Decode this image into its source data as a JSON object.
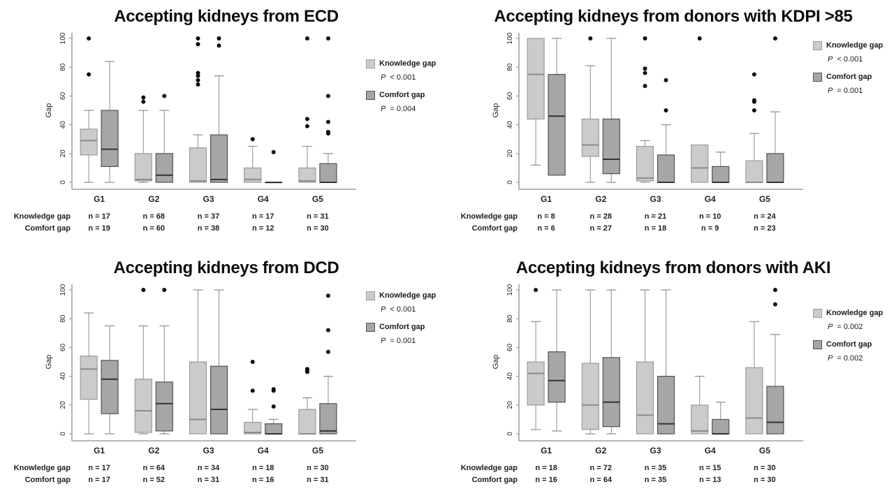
{
  "colors": {
    "knowledge_fill": "#cbcbcb",
    "knowledge_border": "#9b9b9b",
    "knowledge_median": "#8a8a8a",
    "comfort_fill": "#a6a6a6",
    "comfort_border": "#525252",
    "comfort_median": "#333333",
    "outlier": "#0d0d0d",
    "axis": "#8c8c8c",
    "text": "#1f1f1f"
  },
  "chart_data": [
    {
      "type": "boxplot",
      "title": "Accepting kidneys from ECD",
      "ylabel": "Gap",
      "ylim": [
        0,
        100
      ],
      "yticks": [
        0,
        20,
        40,
        60,
        80,
        100
      ],
      "categories": [
        "G1",
        "G2",
        "G3",
        "G4",
        "G5"
      ],
      "legend_position": "right",
      "legend_top": 42,
      "legend": [
        {
          "label": "Knowledge gap",
          "p": "P < 0.001"
        },
        {
          "label": "Comfort gap",
          "p": "P = 0.004"
        }
      ],
      "series": [
        {
          "name": "Knowledge gap",
          "boxes": [
            {
              "low": 0,
              "q1": 19,
              "median": 29,
              "q3": 37,
              "high": 50,
              "outliers": [
                75,
                100
              ]
            },
            {
              "low": 0,
              "q1": 1,
              "median": 2,
              "q3": 20,
              "high": 50,
              "outliers": [
                56,
                59
              ]
            },
            {
              "low": 0,
              "q1": 0,
              "median": 1,
              "q3": 24,
              "high": 33,
              "outliers": [
                68,
                71,
                74,
                76,
                96,
                100
              ]
            },
            {
              "low": 0,
              "q1": 0,
              "median": 2,
              "q3": 10,
              "high": 25,
              "outliers": [
                30
              ]
            },
            {
              "low": 0,
              "q1": 0,
              "median": 1,
              "q3": 10,
              "high": 25,
              "outliers": [
                39,
                44,
                100
              ]
            }
          ]
        },
        {
          "name": "Comfort gap",
          "boxes": [
            {
              "low": 0,
              "q1": 11,
              "median": 23,
              "q3": 50,
              "high": 84,
              "outliers": []
            },
            {
              "low": 0,
              "q1": 0,
              "median": 5,
              "q3": 20,
              "high": 50,
              "outliers": [
                60
              ]
            },
            {
              "low": 0,
              "q1": 0,
              "median": 2,
              "q3": 33,
              "high": 74,
              "outliers": [
                95,
                100
              ]
            },
            {
              "low": 0,
              "q1": 0,
              "median": 0,
              "q3": 0,
              "high": 0,
              "outliers": [
                21
              ]
            },
            {
              "low": 0,
              "q1": 0,
              "median": 0,
              "q3": 13,
              "high": 20,
              "outliers": [
                34,
                35,
                42,
                60,
                100
              ]
            }
          ]
        }
      ],
      "table": {
        "rows": [
          {
            "label": "Knowledge gap",
            "values": [
              "n = 17",
              "n = 68",
              "n = 37",
              "n = 17",
              "n = 31"
            ]
          },
          {
            "label": "Comfort gap",
            "values": [
              "n = 19",
              "n = 60",
              "n = 38",
              "n = 12",
              "n = 30"
            ]
          }
        ]
      }
    },
    {
      "type": "boxplot",
      "title": "Accepting kidneys from donors with KDPI >85",
      "ylabel": "Gap",
      "ylim": [
        0,
        100
      ],
      "yticks": [
        0,
        20,
        40,
        60,
        80,
        100
      ],
      "categories": [
        "G1",
        "G2",
        "G3",
        "G4",
        "G5"
      ],
      "legend_position": "right",
      "legend_top": 16,
      "legend": [
        {
          "label": "Knowledge gap",
          "p": "P < 0.001"
        },
        {
          "label": "Comfort gap",
          "p": "P = 0.001"
        }
      ],
      "series": [
        {
          "name": "Knowledge gap",
          "boxes": [
            {
              "low": 12,
              "q1": 44,
              "median": 75,
              "q3": 100,
              "high": 100,
              "outliers": []
            },
            {
              "low": 0,
              "q1": 18,
              "median": 26,
              "q3": 44,
              "high": 81,
              "outliers": [
                100
              ]
            },
            {
              "low": 0,
              "q1": 1,
              "median": 3,
              "q3": 25,
              "high": 29,
              "outliers": [
                67,
                76,
                79,
                100
              ]
            },
            {
              "low": 0,
              "q1": 0,
              "median": 10,
              "q3": 26,
              "high": 26,
              "outliers": [
                100
              ]
            },
            {
              "low": 0,
              "q1": 0,
              "median": 0,
              "q3": 15,
              "high": 34,
              "outliers": [
                50,
                56,
                57,
                75
              ]
            }
          ]
        },
        {
          "name": "Comfort gap",
          "boxes": [
            {
              "low": 5,
              "q1": 5,
              "median": 46,
              "q3": 75,
              "high": 100,
              "outliers": []
            },
            {
              "low": 0,
              "q1": 6,
              "median": 16,
              "q3": 44,
              "high": 100,
              "outliers": []
            },
            {
              "low": 0,
              "q1": 0,
              "median": 0,
              "q3": 19,
              "high": 40,
              "outliers": [
                50,
                71
              ]
            },
            {
              "low": 0,
              "q1": 0,
              "median": 0,
              "q3": 11,
              "high": 21,
              "outliers": []
            },
            {
              "low": 0,
              "q1": 0,
              "median": 0,
              "q3": 20,
              "high": 49,
              "outliers": [
                100
              ]
            }
          ]
        }
      ],
      "table": {
        "rows": [
          {
            "label": "Knowledge gap",
            "values": [
              "n = 8",
              "n = 28",
              "n = 21",
              "n = 10",
              "n = 24"
            ]
          },
          {
            "label": "Comfort gap",
            "values": [
              "n = 6",
              "n = 27",
              "n = 18",
              "n = 9",
              "n = 23"
            ]
          }
        ]
      }
    },
    {
      "type": "boxplot",
      "title": "Accepting kidneys from DCD",
      "ylabel": "Gap",
      "ylim": [
        0,
        100
      ],
      "yticks": [
        0,
        20,
        40,
        60,
        80,
        100
      ],
      "categories": [
        "G1",
        "G2",
        "G3",
        "G4",
        "G5"
      ],
      "legend_position": "right",
      "legend_top": 14,
      "legend": [
        {
          "label": "Knowledge gap",
          "p": "P < 0.001"
        },
        {
          "label": "Comfort gap",
          "p": "P = 0.001"
        }
      ],
      "series": [
        {
          "name": "Knowledge gap",
          "boxes": [
            {
              "low": 0,
              "q1": 24,
              "median": 45,
              "q3": 54,
              "high": 84,
              "outliers": []
            },
            {
              "low": 0,
              "q1": 1,
              "median": 16,
              "q3": 38,
              "high": 75,
              "outliers": [
                100
              ]
            },
            {
              "low": 0,
              "q1": 0,
              "median": 10,
              "q3": 50,
              "high": 100,
              "outliers": []
            },
            {
              "low": 0,
              "q1": 0,
              "median": 1,
              "q3": 8,
              "high": 17,
              "outliers": [
                30,
                50
              ]
            },
            {
              "low": 0,
              "q1": 0,
              "median": 0,
              "q3": 17,
              "high": 25,
              "outliers": [
                43,
                44,
                45
              ]
            }
          ]
        },
        {
          "name": "Comfort gap",
          "boxes": [
            {
              "low": 0,
              "q1": 14,
              "median": 38,
              "q3": 51,
              "high": 75,
              "outliers": []
            },
            {
              "low": 0,
              "q1": 2,
              "median": 21,
              "q3": 36,
              "high": 75,
              "outliers": [
                100
              ]
            },
            {
              "low": 0,
              "q1": 0,
              "median": 17,
              "q3": 47,
              "high": 100,
              "outliers": []
            },
            {
              "low": 0,
              "q1": 0,
              "median": 0,
              "q3": 7,
              "high": 10,
              "outliers": [
                19,
                30,
                31
              ]
            },
            {
              "low": 0,
              "q1": 0,
              "median": 2,
              "q3": 21,
              "high": 40,
              "outliers": [
                57,
                72,
                96
              ]
            }
          ]
        }
      ],
      "table": {
        "rows": [
          {
            "label": "Knowledge gap",
            "values": [
              "n = 17",
              "n = 64",
              "n = 34",
              "n = 18",
              "n = 30"
            ]
          },
          {
            "label": "Comfort gap",
            "values": [
              "n = 17",
              "n = 52",
              "n = 31",
              "n = 16",
              "n = 31"
            ]
          }
        ]
      }
    },
    {
      "type": "boxplot",
      "title": "Accepting kidneys from donors with AKI",
      "ylabel": "Gap",
      "ylim": [
        0,
        100
      ],
      "yticks": [
        0,
        20,
        40,
        60,
        80,
        100
      ],
      "categories": [
        "G1",
        "G2",
        "G3",
        "G4",
        "G5"
      ],
      "legend_position": "right",
      "legend_top": 39,
      "legend": [
        {
          "label": "Knowledge gap",
          "p": "P = 0.002"
        },
        {
          "label": "Comfort gap",
          "p": "P = 0.002"
        }
      ],
      "series": [
        {
          "name": "Knowledge gap",
          "boxes": [
            {
              "low": 3,
              "q1": 20,
              "median": 42,
              "q3": 50,
              "high": 78,
              "outliers": [
                100
              ]
            },
            {
              "low": 0,
              "q1": 3,
              "median": 20,
              "q3": 49,
              "high": 100,
              "outliers": []
            },
            {
              "low": 0,
              "q1": 0,
              "median": 13,
              "q3": 50,
              "high": 100,
              "outliers": []
            },
            {
              "low": 0,
              "q1": 0,
              "median": 2,
              "q3": 20,
              "high": 40,
              "outliers": []
            },
            {
              "low": 0,
              "q1": 0,
              "median": 11,
              "q3": 46,
              "high": 78,
              "outliers": []
            }
          ]
        },
        {
          "name": "Comfort gap",
          "boxes": [
            {
              "low": 2,
              "q1": 22,
              "median": 37,
              "q3": 57,
              "high": 100,
              "outliers": []
            },
            {
              "low": 0,
              "q1": 5,
              "median": 22,
              "q3": 53,
              "high": 100,
              "outliers": []
            },
            {
              "low": 0,
              "q1": 0,
              "median": 7,
              "q3": 40,
              "high": 100,
              "outliers": []
            },
            {
              "low": 0,
              "q1": 0,
              "median": 0,
              "q3": 10,
              "high": 22,
              "outliers": []
            },
            {
              "low": 0,
              "q1": 0,
              "median": 8,
              "q3": 33,
              "high": 69,
              "outliers": [
                90,
                100
              ]
            }
          ]
        }
      ],
      "table": {
        "rows": [
          {
            "label": "Knowledge gap",
            "values": [
              "n = 18",
              "n = 72",
              "n = 35",
              "n = 15",
              "n = 30"
            ]
          },
          {
            "label": "Comfort gap",
            "values": [
              "n = 16",
              "n = 64",
              "n = 35",
              "n = 13",
              "n = 30"
            ]
          }
        ]
      }
    }
  ]
}
